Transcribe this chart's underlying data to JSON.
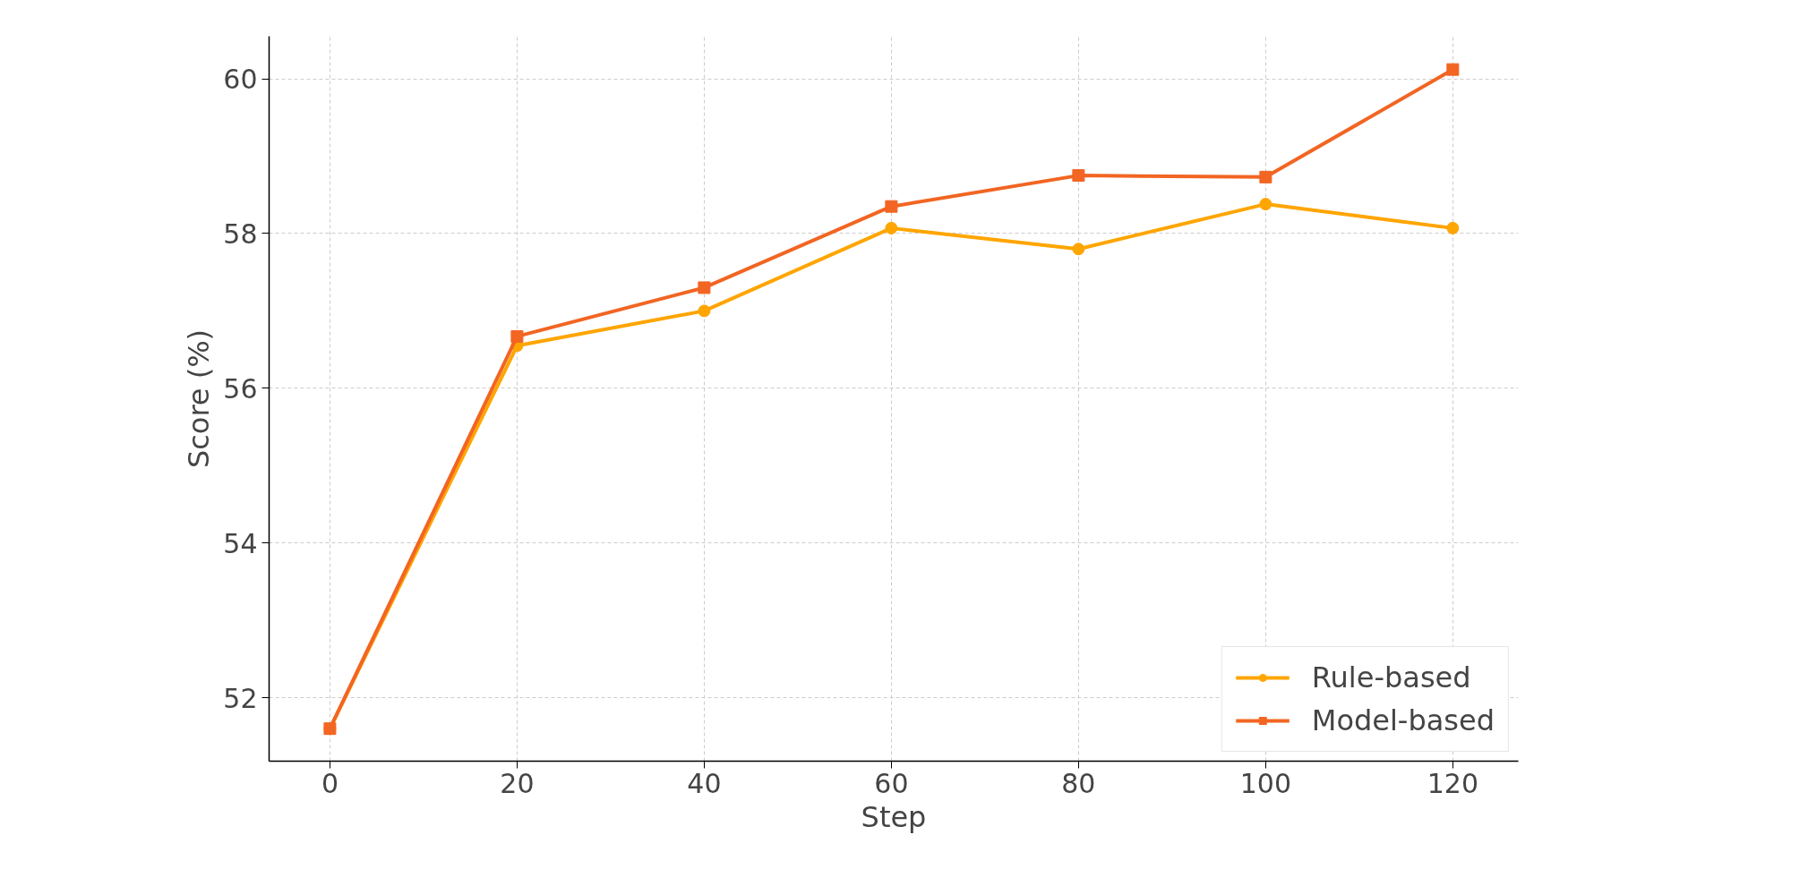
{
  "chart_data": {
    "type": "line",
    "xlabel": "Step",
    "ylabel": "Score (%)",
    "x": [
      0,
      20,
      40,
      60,
      80,
      100,
      120
    ],
    "series": [
      {
        "name": "Rule-based",
        "color": "#ffa500",
        "marker": "circle",
        "values": [
          51.6,
          56.55,
          57.0,
          58.07,
          57.8,
          58.38,
          58.07
        ]
      },
      {
        "name": "Model-based",
        "color": "#f26522",
        "marker": "square",
        "values": [
          51.6,
          56.67,
          57.3,
          58.35,
          58.75,
          58.73,
          60.12
        ]
      }
    ],
    "xlim": [
      -6.5,
      127
    ],
    "xticks": [
      0,
      20,
      40,
      60,
      80,
      100,
      120
    ],
    "ylim": [
      51.18,
      60.55
    ],
    "yticks": [
      52,
      54,
      56,
      58,
      60
    ],
    "grid": true,
    "legend": "bottom right",
    "line_style": "solid"
  }
}
